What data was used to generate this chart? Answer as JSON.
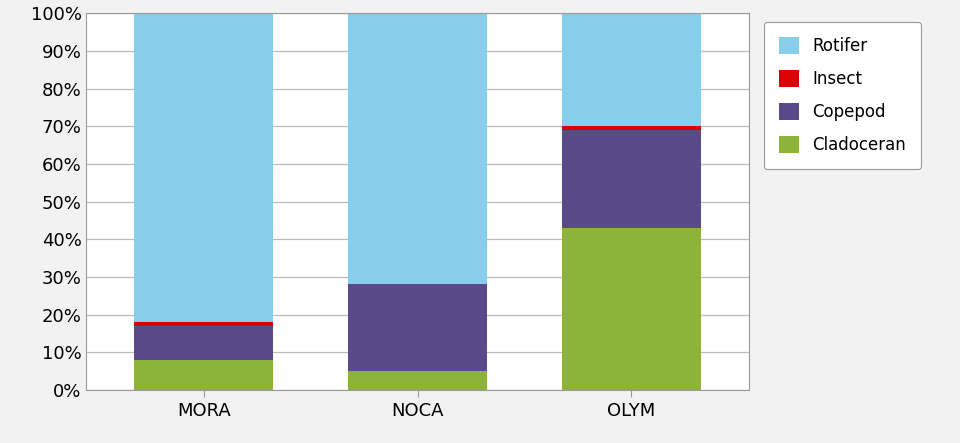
{
  "categories": [
    "MORA",
    "NOCA",
    "OLYM"
  ],
  "series": {
    "Cladoceran": [
      0.08,
      0.05,
      0.43
    ],
    "Copepod": [
      0.09,
      0.23,
      0.26
    ],
    "Insect": [
      0.01,
      0.0,
      0.01
    ],
    "Rotifer": [
      0.82,
      0.72,
      0.3
    ]
  },
  "colors": {
    "Cladoceran": "#8DB33A",
    "Copepod": "#5B4A8A",
    "Insect": "#DD0000",
    "Rotifer": "#87CEEB"
  },
  "legend_order": [
    "Rotifer",
    "Insect",
    "Copepod",
    "Cladoceran"
  ],
  "stack_order": [
    "Cladoceran",
    "Copepod",
    "Insect",
    "Rotifer"
  ],
  "ylim": [
    0,
    1.0
  ],
  "ytick_step": 0.1,
  "bar_width": 0.65,
  "background_color": "#f2f2f2",
  "plot_bg_color": "#ffffff",
  "grid_color": "#bbbbbb",
  "edge_color": "#999999"
}
